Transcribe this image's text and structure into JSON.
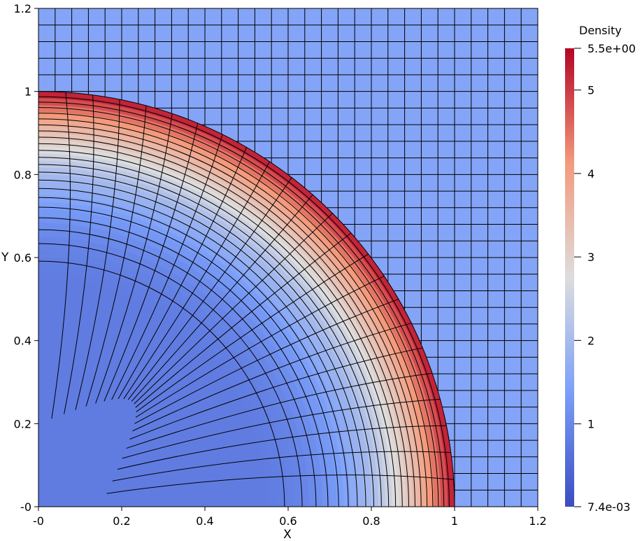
{
  "chart_data": {
    "type": "heatmap",
    "title": "",
    "xlabel": "X",
    "ylabel": "Y",
    "xlim": [
      0,
      1.2
    ],
    "ylim": [
      0,
      1.2
    ],
    "x_ticks": [
      {
        "value": 0,
        "label": "-0"
      },
      {
        "value": 0.2,
        "label": "0.2"
      },
      {
        "value": 0.4,
        "label": "0.4"
      },
      {
        "value": 0.6,
        "label": "0.6"
      },
      {
        "value": 0.8,
        "label": "0.8"
      },
      {
        "value": 1.0,
        "label": "1"
      },
      {
        "value": 1.2,
        "label": "1.2"
      }
    ],
    "y_ticks": [
      {
        "value": 0,
        "label": "-0"
      },
      {
        "value": 0.2,
        "label": "0.2"
      },
      {
        "value": 0.4,
        "label": "0.4"
      },
      {
        "value": 0.6,
        "label": "0.6"
      },
      {
        "value": 0.8,
        "label": "0.8"
      },
      {
        "value": 1.0,
        "label": "1"
      },
      {
        "value": 1.2,
        "label": "1.2"
      }
    ],
    "colorbar": {
      "title": "Density",
      "min": 0.0074,
      "max": 5.5,
      "min_label": "7.4e-03",
      "max_label": "5.5e+00",
      "ticks": [
        {
          "value": 1,
          "label": "1"
        },
        {
          "value": 2,
          "label": "2"
        },
        {
          "value": 3,
          "label": "3"
        },
        {
          "value": 4,
          "label": "4"
        },
        {
          "value": 5,
          "label": "5"
        }
      ],
      "colormap": "Cool to Warm",
      "colors": [
        "#3b4cc0",
        "#dddddd",
        "#b40426"
      ]
    },
    "field": {
      "description_values": {
        "inner_region_density": 0.8,
        "outer_region_density": 1.5,
        "shock_peak_density": 5.4,
        "shock_radius": 1.0
      }
    },
    "mesh": {
      "outer_cells_per_unit": 25,
      "inner_radial_lines": 22,
      "inner_angular_lines": 24
    },
    "grid": false
  }
}
